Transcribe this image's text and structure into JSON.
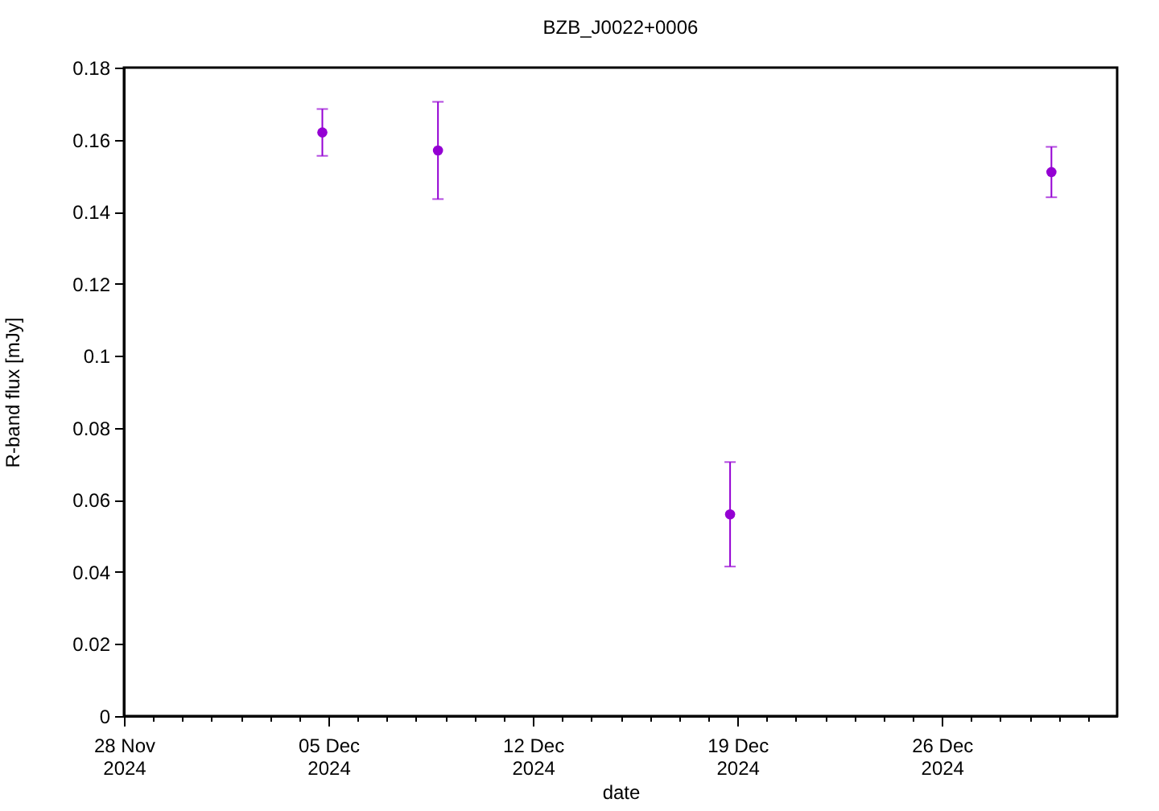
{
  "chart_data": {
    "type": "scatter",
    "title": "BZB_J0022+0006",
    "xlabel": "date",
    "ylabel": "R-band flux [mJy]",
    "x": [
      "2024-12-04T19:00",
      "2024-12-08T18:00",
      "2024-12-18T18:00",
      "2024-12-29T18:00"
    ],
    "values": [
      0.162,
      0.157,
      0.056,
      0.151
    ],
    "errors": [
      0.0065,
      0.0135,
      0.0145,
      0.007
    ],
    "color": "#9400d3",
    "marker": "circle",
    "xlim": [
      "2024-11-28",
      "2025-01-01"
    ],
    "xticks": [
      {
        "value": "2024-11-28",
        "label": "28 Nov\n2024"
      },
      {
        "value": "2024-11-29",
        "label": null
      },
      {
        "value": "2024-11-30",
        "label": null
      },
      {
        "value": "2024-12-01",
        "label": null
      },
      {
        "value": "2024-12-02",
        "label": null
      },
      {
        "value": "2024-12-03",
        "label": null
      },
      {
        "value": "2024-12-04",
        "label": null
      },
      {
        "value": "2024-12-05",
        "label": "05 Dec\n2024"
      },
      {
        "value": "2024-12-06",
        "label": null
      },
      {
        "value": "2024-12-07",
        "label": null
      },
      {
        "value": "2024-12-08",
        "label": null
      },
      {
        "value": "2024-12-09",
        "label": null
      },
      {
        "value": "2024-12-10",
        "label": null
      },
      {
        "value": "2024-12-11",
        "label": null
      },
      {
        "value": "2024-12-12",
        "label": "12 Dec\n2024"
      },
      {
        "value": "2024-12-13",
        "label": null
      },
      {
        "value": "2024-12-14",
        "label": null
      },
      {
        "value": "2024-12-15",
        "label": null
      },
      {
        "value": "2024-12-16",
        "label": null
      },
      {
        "value": "2024-12-17",
        "label": null
      },
      {
        "value": "2024-12-18",
        "label": null
      },
      {
        "value": "2024-12-19",
        "label": "19 Dec\n2024"
      },
      {
        "value": "2024-12-20",
        "label": null
      },
      {
        "value": "2024-12-21",
        "label": null
      },
      {
        "value": "2024-12-22",
        "label": null
      },
      {
        "value": "2024-12-23",
        "label": null
      },
      {
        "value": "2024-12-24",
        "label": null
      },
      {
        "value": "2024-12-25",
        "label": null
      },
      {
        "value": "2024-12-26",
        "label": "26 Dec\n2024"
      },
      {
        "value": "2024-12-27",
        "label": null
      },
      {
        "value": "2024-12-28",
        "label": null
      },
      {
        "value": "2024-12-29",
        "label": null
      },
      {
        "value": "2024-12-30",
        "label": null
      },
      {
        "value": "2024-12-31",
        "label": null
      }
    ],
    "ylim": [
      0,
      0.18
    ],
    "yticks": [
      0,
      0.02,
      0.04,
      0.06,
      0.08,
      0.1,
      0.12,
      0.14,
      0.16,
      0.18
    ]
  }
}
